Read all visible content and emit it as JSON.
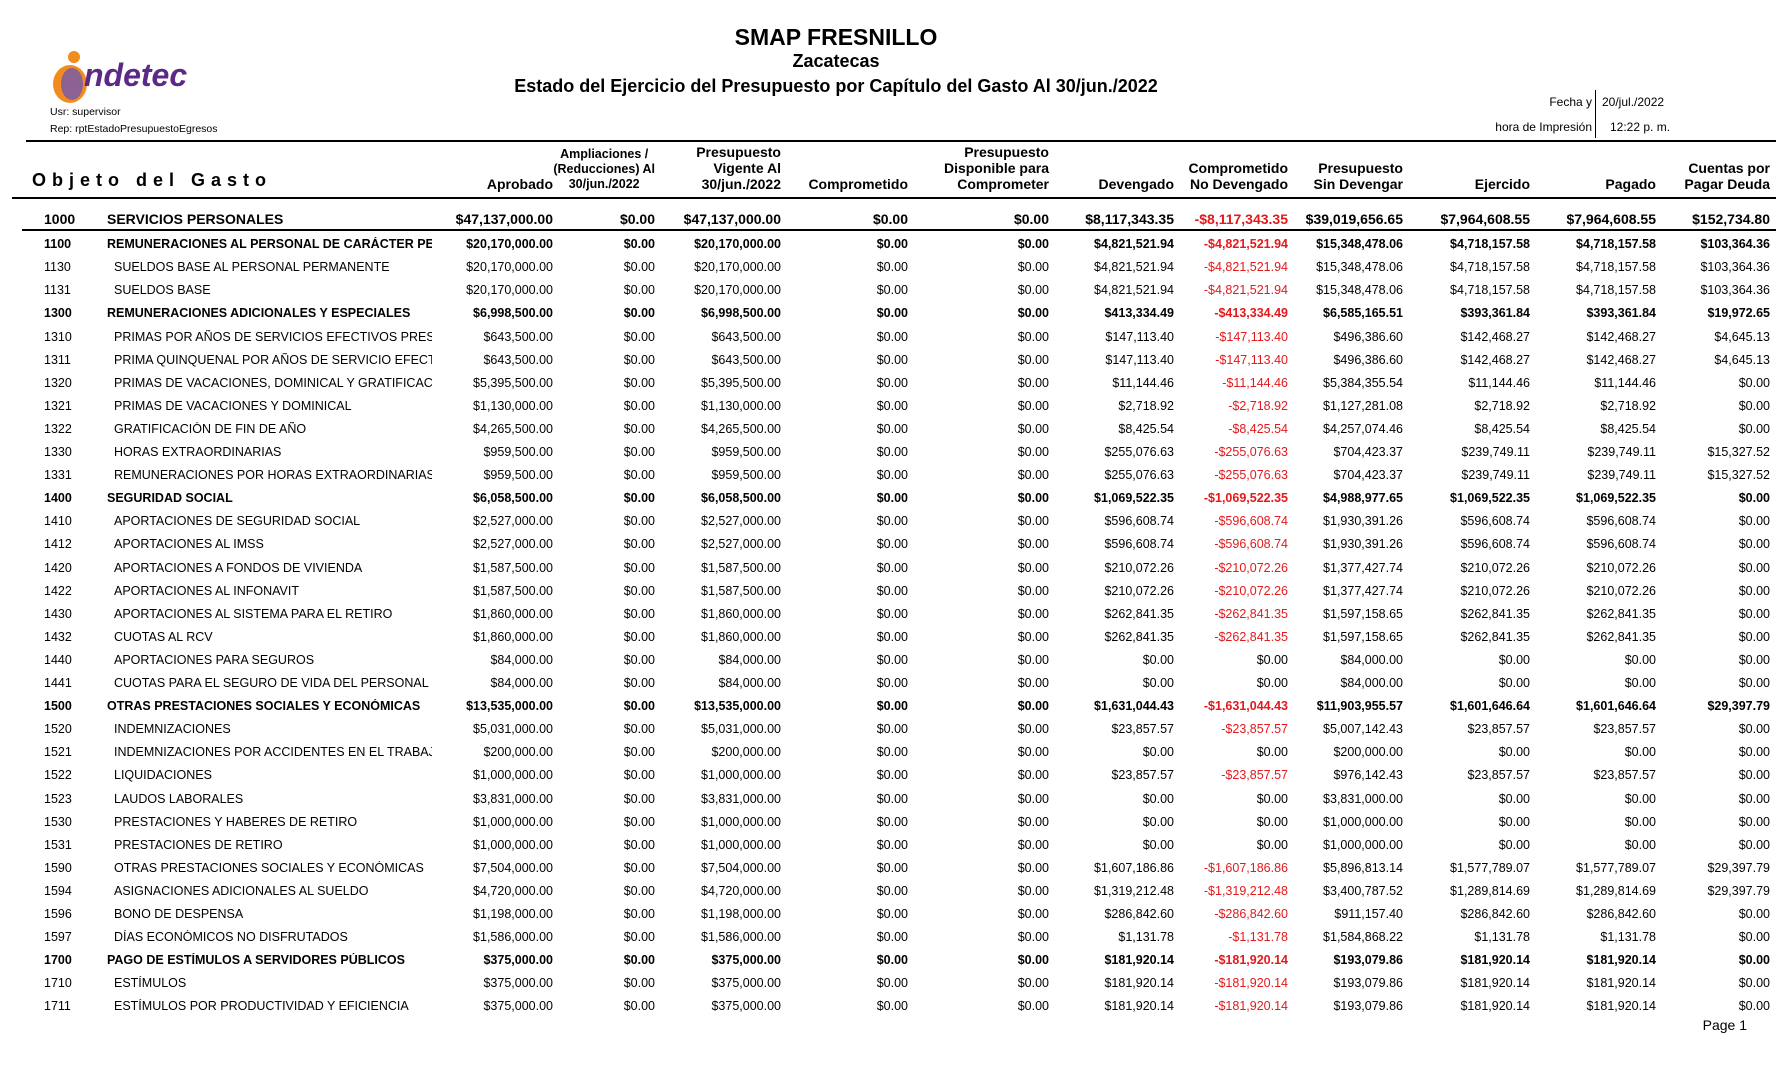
{
  "header": {
    "title": "SMAP FRESNILLO",
    "subtitle": "Zacatecas",
    "report_title": "Estado del Ejercicio del Presupuesto por Capítulo del Gasto Al 30/jun./2022",
    "logo_text": "indetec",
    "user": "Usr: supervisor",
    "report_id": "Rep: rptEstadoPresupuestoEgresos",
    "fecha_label": "Fecha y",
    "fecha_value": "20/jul./2022",
    "hora_label": "hora de Impresión",
    "hora_value": "12:22 p. m."
  },
  "colors": {
    "negative": "#e3191c",
    "logo_purple": "#5b2a86",
    "logo_orange": "#f28c1e"
  },
  "columns": {
    "objeto": "Objeto del Gasto",
    "headers": [
      [
        "Aprobado"
      ],
      [
        "Ampliaciones /",
        "(Reducciones) Al",
        "30/jun./2022"
      ],
      [
        "Presupuesto",
        "Vigente Al",
        "30/jun./2022"
      ],
      [
        "Comprometido"
      ],
      [
        "Presupuesto",
        "Disponible para",
        "Comprometer"
      ],
      [
        "Devengado"
      ],
      [
        "Comprometido",
        "No Devengado"
      ],
      [
        "Presupuesto",
        "Sin Devengar"
      ],
      [
        "Ejercido"
      ],
      [
        "Pagado"
      ],
      [
        "Cuentas por",
        "Pagar Deuda"
      ]
    ]
  },
  "rows": [
    {
      "code": "1000",
      "desc": "SERVICIOS PERSONALES",
      "level": 0,
      "values": [
        "$47,137,000.00",
        "$0.00",
        "$47,137,000.00",
        "$0.00",
        "$0.00",
        "$8,117,343.35",
        "-$8,117,343.35",
        "$39,019,656.65",
        "$7,964,608.55",
        "$7,964,608.55",
        "$152,734.80"
      ]
    },
    {
      "code": "1100",
      "desc": "REMUNERACIONES AL PERSONAL DE CARÁCTER PERMANENTE",
      "level": 1,
      "values": [
        "$20,170,000.00",
        "$0.00",
        "$20,170,000.00",
        "$0.00",
        "$0.00",
        "$4,821,521.94",
        "-$4,821,521.94",
        "$15,348,478.06",
        "$4,718,157.58",
        "$4,718,157.58",
        "$103,364.36"
      ]
    },
    {
      "code": "1130",
      "desc": "SUELDOS BASE AL PERSONAL PERMANENTE",
      "level": 2,
      "values": [
        "$20,170,000.00",
        "$0.00",
        "$20,170,000.00",
        "$0.00",
        "$0.00",
        "$4,821,521.94",
        "-$4,821,521.94",
        "$15,348,478.06",
        "$4,718,157.58",
        "$4,718,157.58",
        "$103,364.36"
      ]
    },
    {
      "code": "1131",
      "desc": "SUELDOS BASE",
      "level": 2,
      "values": [
        "$20,170,000.00",
        "$0.00",
        "$20,170,000.00",
        "$0.00",
        "$0.00",
        "$4,821,521.94",
        "-$4,821,521.94",
        "$15,348,478.06",
        "$4,718,157.58",
        "$4,718,157.58",
        "$103,364.36"
      ]
    },
    {
      "code": "1300",
      "desc": "REMUNERACIONES ADICIONALES Y ESPECIALES",
      "level": 1,
      "values": [
        "$6,998,500.00",
        "$0.00",
        "$6,998,500.00",
        "$0.00",
        "$0.00",
        "$413,334.49",
        "-$413,334.49",
        "$6,585,165.51",
        "$393,361.84",
        "$393,361.84",
        "$19,972.65"
      ]
    },
    {
      "code": "1310",
      "desc": "PRIMAS POR AÑOS DE SERVICIOS EFECTIVOS PRESTADOS",
      "level": 2,
      "values": [
        "$643,500.00",
        "$0.00",
        "$643,500.00",
        "$0.00",
        "$0.00",
        "$147,113.40",
        "-$147,113.40",
        "$496,386.60",
        "$142,468.27",
        "$142,468.27",
        "$4,645.13"
      ]
    },
    {
      "code": "1311",
      "desc": "PRIMA QUINQUENAL POR AÑOS DE SERVICIO EFECTIVOS",
      "level": 2,
      "values": [
        "$643,500.00",
        "$0.00",
        "$643,500.00",
        "$0.00",
        "$0.00",
        "$147,113.40",
        "-$147,113.40",
        "$496,386.60",
        "$142,468.27",
        "$142,468.27",
        "$4,645.13"
      ]
    },
    {
      "code": "1320",
      "desc": "PRIMAS DE VACACIONES, DOMINICAL Y GRATIFICACIÓN",
      "level": 2,
      "values": [
        "$5,395,500.00",
        "$0.00",
        "$5,395,500.00",
        "$0.00",
        "$0.00",
        "$11,144.46",
        "-$11,144.46",
        "$5,384,355.54",
        "$11,144.46",
        "$11,144.46",
        "$0.00"
      ]
    },
    {
      "code": "1321",
      "desc": "PRIMAS DE VACACIONES Y DOMINICAL",
      "level": 2,
      "values": [
        "$1,130,000.00",
        "$0.00",
        "$1,130,000.00",
        "$0.00",
        "$0.00",
        "$2,718.92",
        "-$2,718.92",
        "$1,127,281.08",
        "$2,718.92",
        "$2,718.92",
        "$0.00"
      ]
    },
    {
      "code": "1322",
      "desc": "GRATIFICACIÓN DE FIN DE AÑO",
      "level": 2,
      "values": [
        "$4,265,500.00",
        "$0.00",
        "$4,265,500.00",
        "$0.00",
        "$0.00",
        "$8,425.54",
        "-$8,425.54",
        "$4,257,074.46",
        "$8,425.54",
        "$8,425.54",
        "$0.00"
      ]
    },
    {
      "code": "1330",
      "desc": "HORAS EXTRAORDINARIAS",
      "level": 2,
      "values": [
        "$959,500.00",
        "$0.00",
        "$959,500.00",
        "$0.00",
        "$0.00",
        "$255,076.63",
        "-$255,076.63",
        "$704,423.37",
        "$239,749.11",
        "$239,749.11",
        "$15,327.52"
      ]
    },
    {
      "code": "1331",
      "desc": "REMUNERACIONES POR  HORAS EXTRAORDINARIAS",
      "level": 2,
      "values": [
        "$959,500.00",
        "$0.00",
        "$959,500.00",
        "$0.00",
        "$0.00",
        "$255,076.63",
        "-$255,076.63",
        "$704,423.37",
        "$239,749.11",
        "$239,749.11",
        "$15,327.52"
      ]
    },
    {
      "code": "1400",
      "desc": "SEGURIDAD SOCIAL",
      "level": 1,
      "values": [
        "$6,058,500.00",
        "$0.00",
        "$6,058,500.00",
        "$0.00",
        "$0.00",
        "$1,069,522.35",
        "-$1,069,522.35",
        "$4,988,977.65",
        "$1,069,522.35",
        "$1,069,522.35",
        "$0.00"
      ]
    },
    {
      "code": "1410",
      "desc": "APORTACIONES DE SEGURIDAD SOCIAL",
      "level": 2,
      "values": [
        "$2,527,000.00",
        "$0.00",
        "$2,527,000.00",
        "$0.00",
        "$0.00",
        "$596,608.74",
        "-$596,608.74",
        "$1,930,391.26",
        "$596,608.74",
        "$596,608.74",
        "$0.00"
      ]
    },
    {
      "code": "1412",
      "desc": "APORTACIONES AL IMSS",
      "level": 2,
      "values": [
        "$2,527,000.00",
        "$0.00",
        "$2,527,000.00",
        "$0.00",
        "$0.00",
        "$596,608.74",
        "-$596,608.74",
        "$1,930,391.26",
        "$596,608.74",
        "$596,608.74",
        "$0.00"
      ]
    },
    {
      "code": "1420",
      "desc": "APORTACIONES A FONDOS DE VIVIENDA",
      "level": 2,
      "values": [
        "$1,587,500.00",
        "$0.00",
        "$1,587,500.00",
        "$0.00",
        "$0.00",
        "$210,072.26",
        "-$210,072.26",
        "$1,377,427.74",
        "$210,072.26",
        "$210,072.26",
        "$0.00"
      ]
    },
    {
      "code": "1422",
      "desc": "APORTACIONES AL INFONAVIT",
      "level": 2,
      "values": [
        "$1,587,500.00",
        "$0.00",
        "$1,587,500.00",
        "$0.00",
        "$0.00",
        "$210,072.26",
        "-$210,072.26",
        "$1,377,427.74",
        "$210,072.26",
        "$210,072.26",
        "$0.00"
      ]
    },
    {
      "code": "1430",
      "desc": "APORTACIONES AL SISTEMA PARA EL RETIRO",
      "level": 2,
      "values": [
        "$1,860,000.00",
        "$0.00",
        "$1,860,000.00",
        "$0.00",
        "$0.00",
        "$262,841.35",
        "-$262,841.35",
        "$1,597,158.65",
        "$262,841.35",
        "$262,841.35",
        "$0.00"
      ]
    },
    {
      "code": "1432",
      "desc": "CUOTAS AL RCV",
      "level": 2,
      "values": [
        "$1,860,000.00",
        "$0.00",
        "$1,860,000.00",
        "$0.00",
        "$0.00",
        "$262,841.35",
        "-$262,841.35",
        "$1,597,158.65",
        "$262,841.35",
        "$262,841.35",
        "$0.00"
      ]
    },
    {
      "code": "1440",
      "desc": "APORTACIONES PARA SEGUROS",
      "level": 2,
      "values": [
        "$84,000.00",
        "$0.00",
        "$84,000.00",
        "$0.00",
        "$0.00",
        "$0.00",
        "$0.00",
        "$84,000.00",
        "$0.00",
        "$0.00",
        "$0.00"
      ]
    },
    {
      "code": "1441",
      "desc": "CUOTAS PARA EL SEGURO DE VIDA DEL PERSONAL",
      "level": 2,
      "values": [
        "$84,000.00",
        "$0.00",
        "$84,000.00",
        "$0.00",
        "$0.00",
        "$0.00",
        "$0.00",
        "$84,000.00",
        "$0.00",
        "$0.00",
        "$0.00"
      ]
    },
    {
      "code": "1500",
      "desc": "OTRAS PRESTACIONES SOCIALES Y ECONÓMICAS",
      "level": 1,
      "values": [
        "$13,535,000.00",
        "$0.00",
        "$13,535,000.00",
        "$0.00",
        "$0.00",
        "$1,631,044.43",
        "-$1,631,044.43",
        "$11,903,955.57",
        "$1,601,646.64",
        "$1,601,646.64",
        "$29,397.79"
      ]
    },
    {
      "code": "1520",
      "desc": "INDEMNIZACIONES",
      "level": 2,
      "values": [
        "$5,031,000.00",
        "$0.00",
        "$5,031,000.00",
        "$0.00",
        "$0.00",
        "$23,857.57",
        "-$23,857.57",
        "$5,007,142.43",
        "$23,857.57",
        "$23,857.57",
        "$0.00"
      ]
    },
    {
      "code": "1521",
      "desc": "INDEMNIZACIONES POR ACCIDENTES EN EL TRABAJO",
      "level": 2,
      "values": [
        "$200,000.00",
        "$0.00",
        "$200,000.00",
        "$0.00",
        "$0.00",
        "$0.00",
        "$0.00",
        "$200,000.00",
        "$0.00",
        "$0.00",
        "$0.00"
      ]
    },
    {
      "code": "1522",
      "desc": "LIQUIDACIONES",
      "level": 2,
      "values": [
        "$1,000,000.00",
        "$0.00",
        "$1,000,000.00",
        "$0.00",
        "$0.00",
        "$23,857.57",
        "-$23,857.57",
        "$976,142.43",
        "$23,857.57",
        "$23,857.57",
        "$0.00"
      ]
    },
    {
      "code": "1523",
      "desc": "LAUDOS LABORALES",
      "level": 2,
      "values": [
        "$3,831,000.00",
        "$0.00",
        "$3,831,000.00",
        "$0.00",
        "$0.00",
        "$0.00",
        "$0.00",
        "$3,831,000.00",
        "$0.00",
        "$0.00",
        "$0.00"
      ]
    },
    {
      "code": "1530",
      "desc": "PRESTACIONES Y HABERES DE RETIRO",
      "level": 2,
      "values": [
        "$1,000,000.00",
        "$0.00",
        "$1,000,000.00",
        "$0.00",
        "$0.00",
        "$0.00",
        "$0.00",
        "$1,000,000.00",
        "$0.00",
        "$0.00",
        "$0.00"
      ]
    },
    {
      "code": "1531",
      "desc": "PRESTACIONES DE RETIRO",
      "level": 2,
      "values": [
        "$1,000,000.00",
        "$0.00",
        "$1,000,000.00",
        "$0.00",
        "$0.00",
        "$0.00",
        "$0.00",
        "$1,000,000.00",
        "$0.00",
        "$0.00",
        "$0.00"
      ]
    },
    {
      "code": "1590",
      "desc": "OTRAS PRESTACIONES SOCIALES Y ECONÓMICAS",
      "level": 2,
      "values": [
        "$7,504,000.00",
        "$0.00",
        "$7,504,000.00",
        "$0.00",
        "$0.00",
        "$1,607,186.86",
        "-$1,607,186.86",
        "$5,896,813.14",
        "$1,577,789.07",
        "$1,577,789.07",
        "$29,397.79"
      ]
    },
    {
      "code": "1594",
      "desc": "ASIGNACIONES ADICIONALES AL SUELDO",
      "level": 2,
      "values": [
        "$4,720,000.00",
        "$0.00",
        "$4,720,000.00",
        "$0.00",
        "$0.00",
        "$1,319,212.48",
        "-$1,319,212.48",
        "$3,400,787.52",
        "$1,289,814.69",
        "$1,289,814.69",
        "$29,397.79"
      ]
    },
    {
      "code": "1596",
      "desc": "BONO DE DESPENSA",
      "level": 2,
      "values": [
        "$1,198,000.00",
        "$0.00",
        "$1,198,000.00",
        "$0.00",
        "$0.00",
        "$286,842.60",
        "-$286,842.60",
        "$911,157.40",
        "$286,842.60",
        "$286,842.60",
        "$0.00"
      ]
    },
    {
      "code": "1597",
      "desc": "DÍAS ECONÓMICOS NO DISFRUTADOS",
      "level": 2,
      "values": [
        "$1,586,000.00",
        "$0.00",
        "$1,586,000.00",
        "$0.00",
        "$0.00",
        "$1,131.78",
        "-$1,131.78",
        "$1,584,868.22",
        "$1,131.78",
        "$1,131.78",
        "$0.00"
      ]
    },
    {
      "code": "1700",
      "desc": "PAGO DE ESTÍMULOS A SERVIDORES PÚBLICOS",
      "level": 1,
      "values": [
        "$375,000.00",
        "$0.00",
        "$375,000.00",
        "$0.00",
        "$0.00",
        "$181,920.14",
        "-$181,920.14",
        "$193,079.86",
        "$181,920.14",
        "$181,920.14",
        "$0.00"
      ]
    },
    {
      "code": "1710",
      "desc": "ESTÍMULOS",
      "level": 2,
      "values": [
        "$375,000.00",
        "$0.00",
        "$375,000.00",
        "$0.00",
        "$0.00",
        "$181,920.14",
        "-$181,920.14",
        "$193,079.86",
        "$181,920.14",
        "$181,920.14",
        "$0.00"
      ]
    },
    {
      "code": "1711",
      "desc": "ESTÍMULOS POR PRODUCTIVIDAD Y EFICIENCIA",
      "level": 2,
      "values": [
        "$375,000.00",
        "$0.00",
        "$375,000.00",
        "$0.00",
        "$0.00",
        "$181,920.14",
        "-$181,920.14",
        "$193,079.86",
        "$181,920.14",
        "$181,920.14",
        "$0.00"
      ]
    }
  ],
  "footer": {
    "page": "Page 1"
  }
}
